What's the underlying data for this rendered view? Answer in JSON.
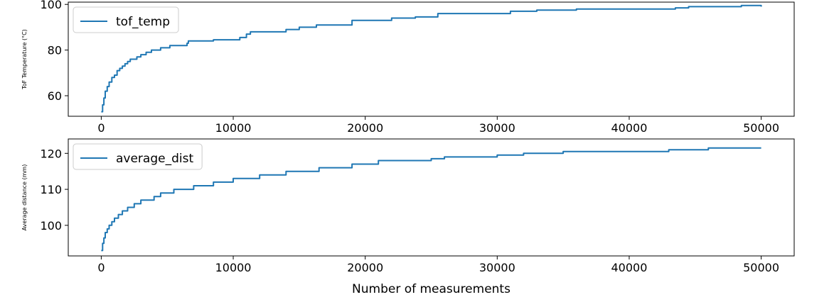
{
  "chart_data": [
    {
      "type": "line",
      "title": "",
      "xlabel": "",
      "ylabel": "ToF Temperature (°C)",
      "xlim": [
        -2500,
        52500
      ],
      "ylim": [
        51,
        101
      ],
      "xticks": [
        0,
        10000,
        20000,
        30000,
        40000,
        50000
      ],
      "yticks": [
        60,
        80,
        100
      ],
      "grid": false,
      "legend": "top-left",
      "color": "#1f77b4",
      "series": [
        {
          "name": "tof_temp",
          "points": [
            [
              0,
              53
            ],
            [
              100,
              56
            ],
            [
              200,
              59
            ],
            [
              300,
              62
            ],
            [
              450,
              64
            ],
            [
              600,
              66
            ],
            [
              800,
              68
            ],
            [
              1000,
              69
            ],
            [
              1200,
              71
            ],
            [
              1400,
              72
            ],
            [
              1600,
              73
            ],
            [
              1800,
              74
            ],
            [
              2000,
              75
            ],
            [
              2200,
              76
            ],
            [
              2700,
              77
            ],
            [
              3000,
              78
            ],
            [
              3400,
              79
            ],
            [
              3800,
              80
            ],
            [
              4500,
              81
            ],
            [
              5200,
              82
            ],
            [
              6500,
              83
            ],
            [
              6600,
              84
            ],
            [
              8500,
              84.5
            ],
            [
              10500,
              85.5
            ],
            [
              11000,
              87
            ],
            [
              11300,
              88
            ],
            [
              14000,
              89
            ],
            [
              15000,
              90
            ],
            [
              16300,
              91
            ],
            [
              19000,
              93
            ],
            [
              22000,
              94
            ],
            [
              23800,
              94.5
            ],
            [
              25500,
              96
            ],
            [
              27000,
              96
            ],
            [
              31000,
              97
            ],
            [
              33000,
              97.5
            ],
            [
              36000,
              98
            ],
            [
              42000,
              98
            ],
            [
              43500,
              98.5
            ],
            [
              44500,
              99
            ],
            [
              47000,
              99
            ],
            [
              48500,
              99.5
            ],
            [
              50000,
              99
            ]
          ]
        }
      ]
    },
    {
      "type": "line",
      "title": "",
      "xlabel": "Number of measurements",
      "ylabel": "Average distance (mm)",
      "xlim": [
        -2500,
        52500
      ],
      "ylim": [
        91.5,
        124
      ],
      "xticks": [
        0,
        10000,
        20000,
        30000,
        40000,
        50000
      ],
      "yticks": [
        100,
        110,
        120
      ],
      "grid": false,
      "legend": "top-left",
      "color": "#1f77b4",
      "series": [
        {
          "name": "average_dist",
          "points": [
            [
              0,
              93
            ],
            [
              100,
              95
            ],
            [
              200,
              96.5
            ],
            [
              300,
              98
            ],
            [
              450,
              99
            ],
            [
              600,
              100
            ],
            [
              800,
              101
            ],
            [
              1000,
              102
            ],
            [
              1300,
              103
            ],
            [
              1600,
              104
            ],
            [
              2000,
              105
            ],
            [
              2500,
              106
            ],
            [
              3000,
              107
            ],
            [
              4000,
              108
            ],
            [
              4500,
              109
            ],
            [
              5500,
              110
            ],
            [
              7000,
              111
            ],
            [
              8500,
              112
            ],
            [
              10000,
              113
            ],
            [
              12000,
              114
            ],
            [
              14000,
              115
            ],
            [
              16500,
              116
            ],
            [
              19000,
              117
            ],
            [
              21000,
              118
            ],
            [
              25000,
              118.5
            ],
            [
              26000,
              119
            ],
            [
              30000,
              119.5
            ],
            [
              32000,
              120
            ],
            [
              35000,
              120.5
            ],
            [
              40000,
              120.5
            ],
            [
              43000,
              121
            ],
            [
              46000,
              121.5
            ],
            [
              50000,
              121.5
            ]
          ]
        }
      ]
    }
  ]
}
